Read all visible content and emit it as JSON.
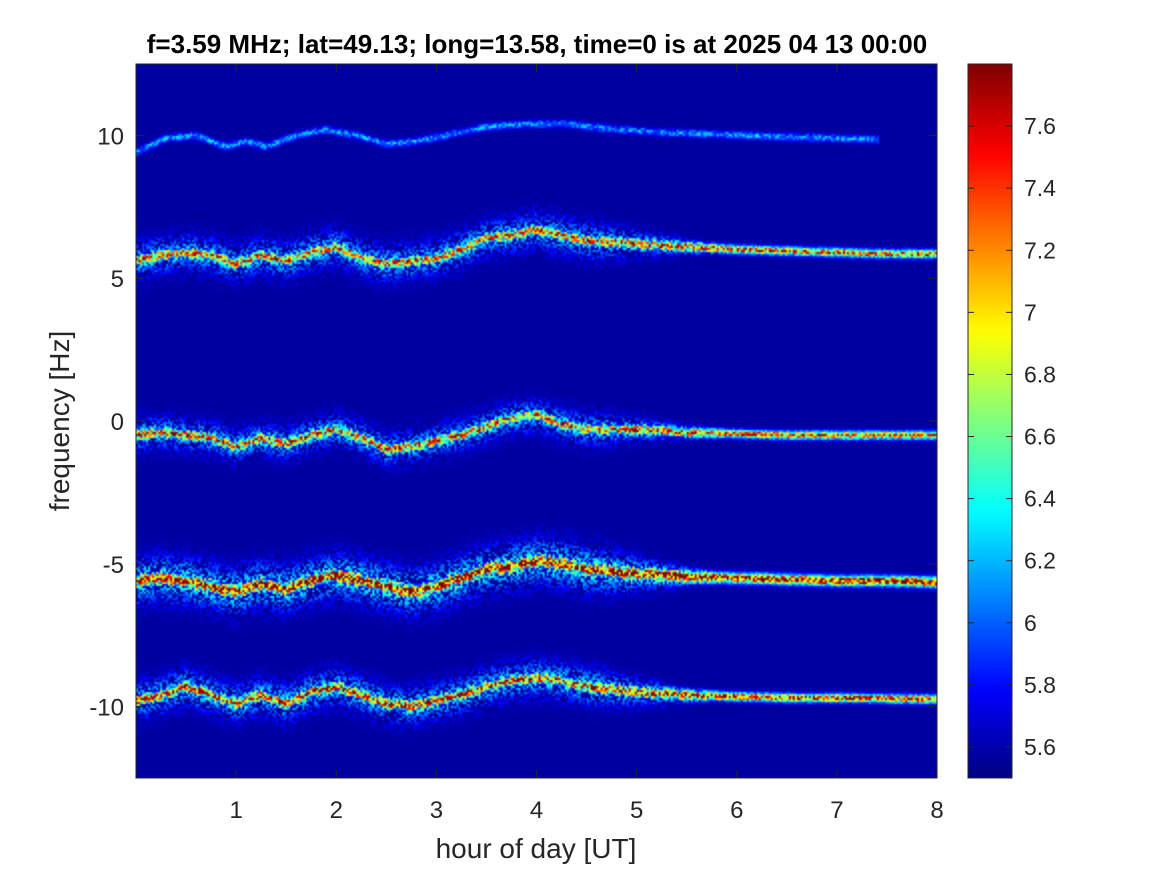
{
  "chart_data": {
    "type": "heatmap",
    "title": "f=3.59 MHz;  lat=49.13; long=13.58, time=0 is at 2025 04 13 00:00",
    "xlabel": "hour of day [UT]",
    "ylabel": "frequency [Hz]",
    "xlim": [
      0,
      8
    ],
    "ylim": [
      -12.5,
      12.5
    ],
    "x_ticks": [
      1,
      2,
      3,
      4,
      5,
      6,
      7,
      8
    ],
    "x_tick_labels": [
      "1",
      "2",
      "3",
      "4",
      "5",
      "6",
      "7",
      "8"
    ],
    "y_ticks": [
      10,
      5,
      0,
      -5,
      -10
    ],
    "y_tick_labels": [
      "10",
      "5",
      "0",
      "-5",
      "-10"
    ],
    "colormap": "jet",
    "background_color": "#00008f",
    "colorbar": {
      "range": [
        5.5,
        7.8
      ],
      "ticks": [
        7.6,
        7.4,
        7.2,
        7,
        6.8,
        6.6,
        6.4,
        6.2,
        6,
        5.8,
        5.6
      ],
      "tick_labels": [
        "7.6",
        "7.4",
        "7.2",
        "7",
        "6.8",
        "6.6",
        "6.4",
        "6.2",
        "6",
        "5.8",
        "5.6"
      ]
    },
    "traces": [
      {
        "name": "trace_10Hz",
        "x": [
          0,
          0.3,
          0.6,
          0.9,
          1.1,
          1.3,
          1.6,
          1.9,
          2.2,
          2.5,
          2.8,
          3.1,
          3.5,
          3.9,
          4.3,
          4.8,
          5.3,
          6,
          7,
          7.4
        ],
        "y": [
          9.4,
          9.9,
          10,
          9.6,
          9.8,
          9.6,
          10,
          10.2,
          10,
          9.7,
          9.8,
          10,
          10.3,
          10.4,
          10.4,
          10.2,
          10.1,
          10,
          9.9,
          9.85
        ],
        "peak": 6.1,
        "width": 0.08,
        "spread": 0.1
      },
      {
        "name": "trace_5Hz",
        "x": [
          0,
          0.25,
          0.5,
          0.75,
          1,
          1.25,
          1.5,
          1.75,
          2,
          2.25,
          2.5,
          2.75,
          3,
          3.25,
          3.5,
          3.75,
          4,
          4.25,
          4.5,
          5,
          5.5,
          6,
          6.5,
          7,
          7.5,
          8
        ],
        "y": [
          5.6,
          5.8,
          5.9,
          5.8,
          5.5,
          5.8,
          5.6,
          5.9,
          6.1,
          5.7,
          5.5,
          5.6,
          5.7,
          6,
          6.4,
          6.5,
          6.7,
          6.5,
          6.3,
          6.2,
          6.1,
          6,
          5.95,
          5.9,
          5.85,
          5.85
        ],
        "peak": 7.3,
        "width": 0.1,
        "spread": 0.45,
        "spread_fade_at": 4.6
      },
      {
        "name": "trace_0Hz",
        "x": [
          0,
          0.25,
          0.5,
          0.75,
          1,
          1.25,
          1.5,
          1.75,
          2,
          2.25,
          2.5,
          2.75,
          3,
          3.25,
          3.5,
          3.75,
          4,
          4.25,
          4.5,
          5,
          5.5,
          6,
          6.5,
          7,
          7.5,
          8
        ],
        "y": [
          -0.5,
          -0.4,
          -0.5,
          -0.6,
          -0.9,
          -0.6,
          -0.8,
          -0.5,
          -0.3,
          -0.6,
          -1,
          -0.9,
          -0.7,
          -0.5,
          -0.2,
          0.1,
          0.2,
          -0.1,
          -0.3,
          -0.3,
          -0.4,
          -0.45,
          -0.5,
          -0.5,
          -0.5,
          -0.5
        ],
        "peak": 7.3,
        "width": 0.1,
        "spread": 0.4,
        "spread_fade_at": 4.6
      },
      {
        "name": "trace_neg5Hz",
        "x": [
          0,
          0.25,
          0.5,
          0.75,
          1,
          1.25,
          1.5,
          1.75,
          2,
          2.25,
          2.5,
          2.75,
          3,
          3.25,
          3.5,
          3.75,
          4,
          4.25,
          4.5,
          5,
          5.5,
          6,
          6.5,
          7,
          7.5,
          8
        ],
        "y": [
          -5.6,
          -5.5,
          -5.6,
          -5.8,
          -6,
          -5.7,
          -5.9,
          -5.6,
          -5.4,
          -5.6,
          -5.8,
          -6,
          -5.8,
          -5.5,
          -5.2,
          -5.1,
          -4.9,
          -5,
          -5.2,
          -5.35,
          -5.45,
          -5.5,
          -5.55,
          -5.6,
          -5.6,
          -5.65
        ],
        "peak": 7.75,
        "width": 0.12,
        "spread": 0.55,
        "spread_fade_at": 4.6
      },
      {
        "name": "trace_neg10Hz",
        "x": [
          0,
          0.25,
          0.5,
          0.75,
          1,
          1.25,
          1.5,
          1.75,
          2,
          2.25,
          2.5,
          2.75,
          3,
          3.25,
          3.5,
          3.75,
          4,
          4.25,
          4.5,
          5,
          5.5,
          6,
          6.5,
          7,
          7.5,
          8
        ],
        "y": [
          -9.8,
          -9.6,
          -9.3,
          -9.6,
          -9.9,
          -9.6,
          -9.9,
          -9.5,
          -9.3,
          -9.6,
          -9.9,
          -10,
          -9.8,
          -9.6,
          -9.3,
          -9.1,
          -9,
          -9.1,
          -9.3,
          -9.5,
          -9.6,
          -9.65,
          -9.7,
          -9.7,
          -9.72,
          -9.75
        ],
        "peak": 7.5,
        "width": 0.1,
        "spread": 0.45,
        "spread_fade_at": 4.6
      }
    ]
  }
}
